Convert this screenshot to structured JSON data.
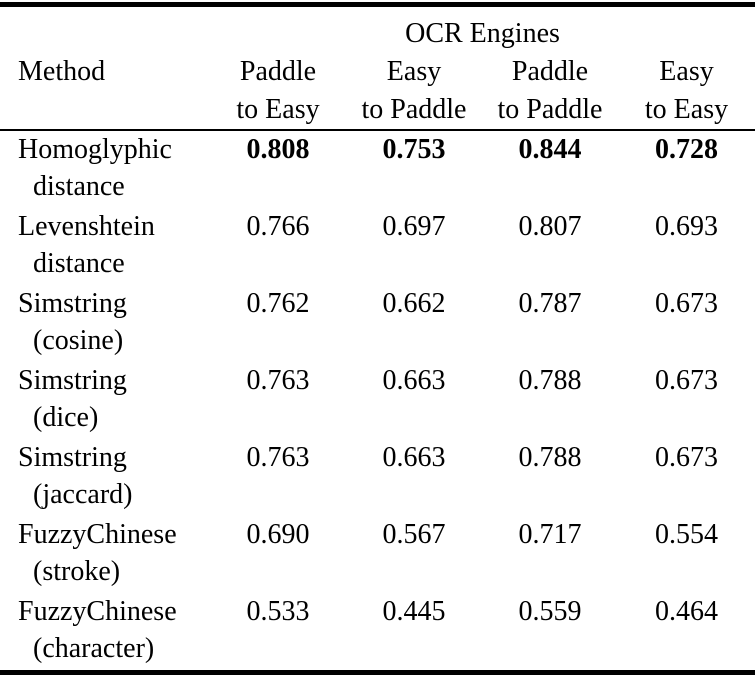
{
  "colors": {
    "text": "#000000",
    "background": "#ffffff",
    "rule": "#000000"
  },
  "table": {
    "group_header": "OCR Engines",
    "columns": [
      {
        "line1": "Method",
        "line2": ""
      },
      {
        "line1": "Paddle",
        "line2": "to Easy"
      },
      {
        "line1": "Easy",
        "line2": "to Paddle"
      },
      {
        "line1": "Paddle",
        "line2": "to Paddle"
      },
      {
        "line1": "Easy",
        "line2": "to Easy"
      }
    ],
    "rows": [
      {
        "method": "Homoglyphic",
        "detail": "distance",
        "emphasis": "bold",
        "values": [
          "0.808",
          "0.753",
          "0.844",
          "0.728"
        ]
      },
      {
        "method": "Levenshtein",
        "detail": "distance",
        "emphasis": "none",
        "values": [
          "0.766",
          "0.697",
          "0.807",
          "0.693"
        ]
      },
      {
        "method": "Simstring",
        "detail": "(cosine)",
        "emphasis": "none",
        "values": [
          "0.762",
          "0.662",
          "0.787",
          "0.673"
        ]
      },
      {
        "method": "Simstring",
        "detail": "(dice)",
        "emphasis": "none",
        "values": [
          "0.763",
          "0.663",
          "0.788",
          "0.673"
        ]
      },
      {
        "method": "Simstring",
        "detail": "(jaccard)",
        "emphasis": "none",
        "values": [
          "0.763",
          "0.663",
          "0.788",
          "0.673"
        ]
      },
      {
        "method": "FuzzyChinese",
        "detail": "(stroke)",
        "emphasis": "none",
        "values": [
          "0.690",
          "0.567",
          "0.717",
          "0.554"
        ]
      },
      {
        "method": "FuzzyChinese",
        "detail": "(character)",
        "emphasis": "none",
        "values": [
          "0.533",
          "0.445",
          "0.559",
          "0.464"
        ]
      }
    ]
  }
}
